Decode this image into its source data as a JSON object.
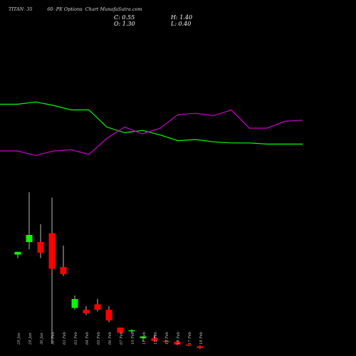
{
  "title": "TITAN  35          60  PE Options  Chart MunafaSutra.com",
  "ohlc": {
    "c_label": "C: 0.55",
    "h_label": "H: 1.40",
    "o_label": "O: 1.30",
    "l_label": "L: 0.40"
  },
  "colors": {
    "background": "#000000",
    "up": "#00ff00",
    "down": "#ff0000",
    "line_green": "#00ff00",
    "line_magenta": "#cc00cc",
    "label": "#bbbbbb"
  },
  "chart_data": [
    {
      "type": "line",
      "series": [
        {
          "values": [
            7.1,
            7.1,
            7.3,
            7.0,
            6.6,
            6.6,
            5.1,
            4.6,
            4.8,
            4.4,
            3.9,
            4.0,
            3.8,
            3.7,
            3.7,
            3.6,
            3.6,
            3.6
          ]
        },
        {
          "values": [
            3.0,
            3.0,
            2.6,
            3.0,
            3.1,
            2.7,
            4.1,
            5.1,
            4.5,
            5.0,
            6.2,
            6.3,
            6.1,
            6.6,
            5.0,
            5.0,
            5.6,
            5.7
          ]
        }
      ],
      "ylim": [
        0,
        10
      ]
    },
    {
      "type": "candlestick",
      "categories": [
        "29 Jan",
        "29 Jan",
        "30 Jan",
        "31 Feb",
        "03 Feb",
        "03 Feb",
        "04 Feb",
        "05 Feb",
        "06 Feb",
        "07 Feb",
        "10 Feb",
        "11 Feb",
        "12 Feb",
        "13 Feb",
        "14 Feb",
        "17 Feb",
        "18 Feb"
      ],
      "candles": [
        {
          "o": 9.7,
          "h": 9.8,
          "l": 9.5,
          "c": 9.85
        },
        {
          "o": 10.4,
          "h": 13.2,
          "l": 10.0,
          "c": 10.8
        },
        {
          "o": 10.4,
          "h": 11.4,
          "l": 9.5,
          "c": 9.8
        },
        {
          "o": 10.9,
          "h": 12.9,
          "l": 4.7,
          "c": 8.9
        },
        {
          "o": 9.0,
          "h": 10.2,
          "l": 8.5,
          "c": 8.6
        },
        {
          "o": 6.7,
          "h": 7.4,
          "l": 6.6,
          "c": 7.2
        },
        {
          "o": 6.6,
          "h": 6.8,
          "l": 6.3,
          "c": 6.4
        },
        {
          "o": 6.9,
          "h": 7.2,
          "l": 6.5,
          "c": 6.6
        },
        {
          "o": 6.6,
          "h": 6.8,
          "l": 5.9,
          "c": 6.0
        },
        {
          "o": 5.6,
          "h": 5.6,
          "l": 5.3,
          "c": 5.3
        },
        {
          "o": 5.4,
          "h": 5.5,
          "l": 5.3,
          "c": 5.45
        },
        {
          "o": 5.0,
          "h": 5.1,
          "l": 4.8,
          "c": 5.1
        },
        {
          "o": 5.0,
          "h": 5.2,
          "l": 4.8,
          "c": 4.85
        },
        {
          "o": 4.85,
          "h": 4.9,
          "l": 4.75,
          "c": 4.8
        },
        {
          "o": 4.8,
          "h": 4.85,
          "l": 4.6,
          "c": 4.65
        },
        {
          "o": 4.65,
          "h": 4.65,
          "l": 4.55,
          "c": 4.6
        },
        {
          "o": 4.55,
          "h": 4.6,
          "l": 4.4,
          "c": 4.45
        }
      ],
      "ylim": [
        4,
        14
      ]
    }
  ]
}
